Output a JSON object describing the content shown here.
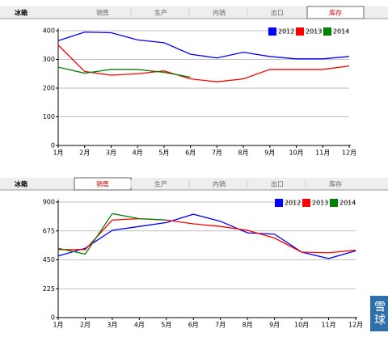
{
  "chart_data": [
    {
      "type": "line",
      "tabs": {
        "label": "冰箱",
        "items": [
          "销售",
          "生产",
          "内销",
          "出口",
          "库存"
        ],
        "active": 4
      },
      "categories": [
        "1月",
        "2月",
        "3月",
        "4月",
        "5月",
        "6月",
        "7月",
        "8月",
        "9月",
        "10月",
        "11月",
        "12月"
      ],
      "ylim": [
        0,
        400
      ],
      "yticks": [
        0,
        100,
        200,
        300,
        400
      ],
      "grid": true,
      "legend": "upper right",
      "series": [
        {
          "name": "2012",
          "color": "#0000ff",
          "values": [
            365,
            395,
            393,
            368,
            358,
            318,
            305,
            325,
            310,
            302,
            302,
            310
          ]
        },
        {
          "name": "2013",
          "color": "#ff0000",
          "values": [
            350,
            258,
            245,
            250,
            260,
            232,
            222,
            232,
            265,
            265,
            265,
            277
          ]
        },
        {
          "name": "2014",
          "color": "#008000",
          "values": [
            273,
            252,
            265,
            265,
            255,
            238,
            null,
            null,
            null,
            null,
            null,
            null
          ]
        }
      ]
    },
    {
      "type": "line",
      "tabs": {
        "label": "冰箱",
        "items": [
          "销售",
          "生产",
          "内销",
          "出口",
          "库存"
        ],
        "active": 0
      },
      "categories": [
        "1月",
        "2月",
        "3月",
        "4月",
        "5月",
        "6月",
        "7月",
        "8月",
        "9月",
        "10月",
        "11月",
        "12月"
      ],
      "ylim": [
        0,
        900
      ],
      "yticks": [
        0,
        225,
        450,
        675,
        900
      ],
      "grid": true,
      "legend": "upper right",
      "series": [
        {
          "name": "2012",
          "color": "#0000ff",
          "values": [
            480,
            540,
            680,
            710,
            740,
            805,
            750,
            660,
            650,
            510,
            460,
            520
          ]
        },
        {
          "name": "2013",
          "color": "#ff0000",
          "values": [
            530,
            530,
            760,
            770,
            760,
            730,
            710,
            680,
            620,
            510,
            505,
            525
          ]
        },
        {
          "name": "2014",
          "color": "#008000",
          "values": [
            540,
            495,
            810,
            770,
            760,
            null,
            null,
            null,
            null,
            null,
            null,
            null
          ]
        }
      ]
    }
  ],
  "watermark": "雪球"
}
